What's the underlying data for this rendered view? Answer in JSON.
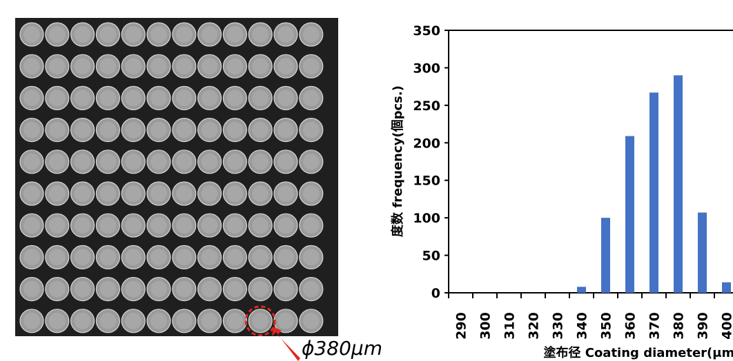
{
  "photo": {
    "label": "ϕ380μm",
    "rows": 10,
    "cols": 12,
    "highlight_color": "#e0261f"
  },
  "chart_data": {
    "type": "bar",
    "categories": [
      "290",
      "300",
      "310",
      "320",
      "330",
      "340",
      "350",
      "360",
      "370",
      "380",
      "390",
      "400"
    ],
    "values": [
      0,
      0,
      0,
      0,
      0,
      8,
      100,
      209,
      267,
      290,
      107,
      14
    ],
    "ylabel": "度数 frequency(個pcs.)",
    "xlabel": "塗布径 Coating diameter(μm)",
    "ylim": [
      0,
      350
    ],
    "yticks": [
      "0",
      "50",
      "100",
      "150",
      "200",
      "250",
      "300",
      "350"
    ],
    "bar_color": "#4472c4",
    "grid": false
  }
}
